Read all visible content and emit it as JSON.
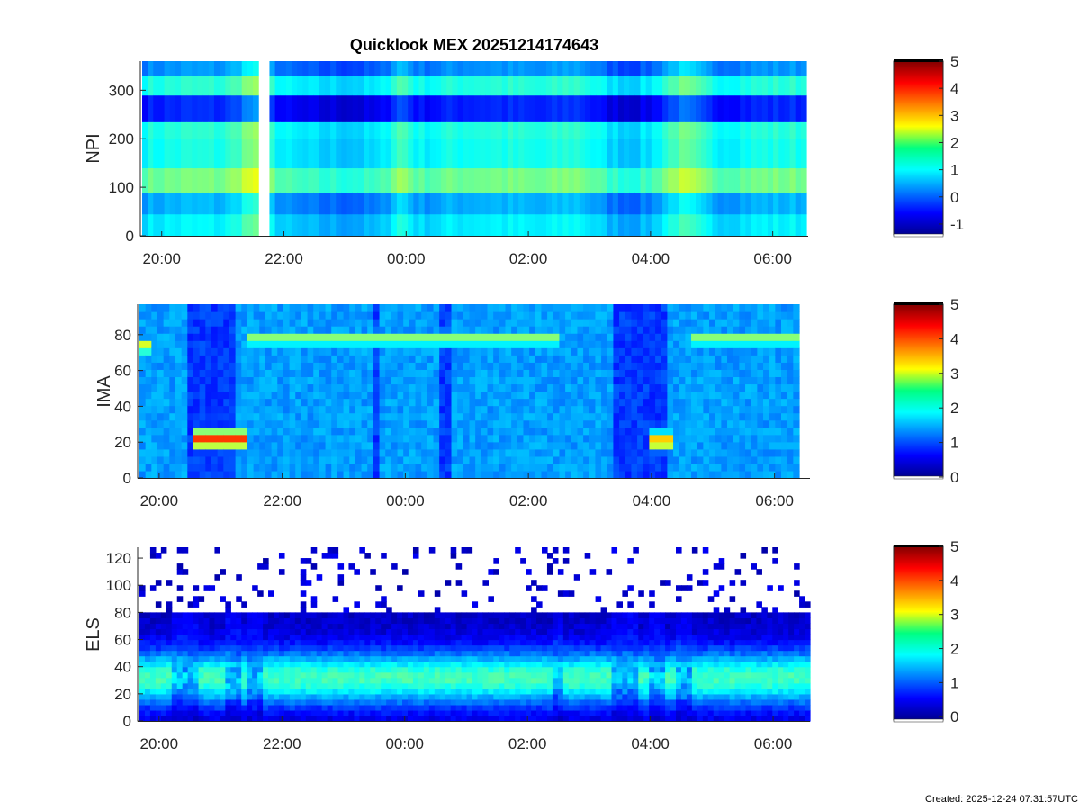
{
  "page": {
    "footer": "Created: 2025-12-24 07:31:57UTC"
  },
  "chart_data": [
    {
      "type": "heatmap",
      "title": "Quicklook MEX 20251214174643",
      "ylabel": "NPI",
      "xlabel": "",
      "x_range_hours": [
        19.68,
        30.55
      ],
      "x_ticks": [
        "20:00",
        "22:00",
        "00:00",
        "02:00",
        "04:00",
        "06:00"
      ],
      "x_tick_hours": [
        20,
        22,
        24,
        26,
        28,
        30
      ],
      "ylim": [
        0,
        360
      ],
      "y_ticks": [
        0,
        100,
        200,
        300
      ],
      "colorbar": {
        "ticks": [
          "-1",
          "0",
          "1",
          "2",
          "3",
          "4",
          "5"
        ],
        "tick_values": [
          -1,
          0,
          1,
          2,
          3,
          4,
          5
        ],
        "range": [
          -1.4,
          5
        ]
      },
      "bands": [
        {
          "y": [
            0,
            45
          ],
          "value": 0.7
        },
        {
          "y": [
            45,
            90
          ],
          "value": 0.3
        },
        {
          "y": [
            90,
            140
          ],
          "value": 1.5
        },
        {
          "y": [
            140,
            200
          ],
          "value": 0.9
        },
        {
          "y": [
            200,
            235
          ],
          "value": 1.0
        },
        {
          "y": [
            235,
            290
          ],
          "value": -0.6
        },
        {
          "y": [
            290,
            330
          ],
          "value": 1.0
        },
        {
          "y": [
            330,
            360
          ],
          "value": 0.1
        }
      ],
      "data_gap_hours": [
        21.6,
        21.78
      ],
      "enhancements": [
        {
          "t": 21.5,
          "width": 0.3,
          "delta": 0.8
        },
        {
          "t": 23.9,
          "width": 0.2,
          "delta": 0.6
        },
        {
          "t": 26.8,
          "width": 0.4,
          "delta": 0.4
        },
        {
          "t": 28.5,
          "width": 0.4,
          "delta": 0.8
        }
      ]
    },
    {
      "type": "heatmap",
      "ylabel": "IMA",
      "xlabel": "",
      "x_range_hours": [
        19.68,
        30.4
      ],
      "x_ticks": [
        "20:00",
        "22:00",
        "00:00",
        "02:00",
        "04:00",
        "06:00"
      ],
      "x_tick_hours": [
        20,
        22,
        24,
        26,
        28,
        30
      ],
      "ylim": [
        0,
        97
      ],
      "y_ticks": [
        0,
        20,
        40,
        60,
        80
      ],
      "colorbar": {
        "ticks": [
          "0",
          "1",
          "2",
          "3",
          "4",
          "5"
        ],
        "tick_values": [
          0,
          1,
          2,
          3,
          4,
          5
        ],
        "range": [
          0,
          5
        ]
      },
      "background_value": 1.4,
      "low_regions_hours": [
        [
          20.5,
          21.2
        ],
        [
          23.45,
          23.55
        ],
        [
          24.6,
          24.75
        ],
        [
          27.4,
          28.25
        ]
      ],
      "beam_segments": [
        {
          "t": [
            21.4,
            26.5
          ],
          "y_center": 78,
          "value": 2.3
        },
        {
          "t": [
            28.6,
            30.4
          ],
          "y_center": 78,
          "value": 2.3
        },
        {
          "t": [
            19.68,
            19.9
          ],
          "y_center": 74,
          "value": 2.7
        }
      ],
      "low_energy_spots": [
        {
          "t": [
            20.55,
            21.4
          ],
          "y_center": 22,
          "value": 3.9
        },
        {
          "t": [
            28.0,
            28.4
          ],
          "y_center": 21,
          "value": 3.3
        }
      ]
    },
    {
      "type": "heatmap",
      "ylabel": "ELS",
      "xlabel": "",
      "x_range_hours": [
        19.68,
        30.6
      ],
      "x_ticks": [
        "20:00",
        "22:00",
        "00:00",
        "02:00",
        "04:00",
        "06:00"
      ],
      "x_tick_hours": [
        20,
        22,
        24,
        26,
        28,
        30
      ],
      "ylim": [
        0,
        128
      ],
      "y_ticks": [
        0,
        20,
        40,
        60,
        80,
        100,
        120
      ],
      "colorbar": {
        "ticks": [
          "0",
          "1",
          "2",
          "3",
          "4",
          "5"
        ],
        "tick_values": [
          0,
          1,
          2,
          3,
          4,
          5
        ],
        "range": [
          -0.1,
          5
        ]
      },
      "peak_band_y": [
        22,
        42
      ],
      "peak_value": 1.9,
      "upper_cutoff_y": 80,
      "noise_above": true,
      "disturbances_hours": [
        20.3,
        20.55,
        21.2,
        21.55,
        26.5,
        27.45,
        27.7,
        28.1,
        28.55
      ]
    }
  ]
}
